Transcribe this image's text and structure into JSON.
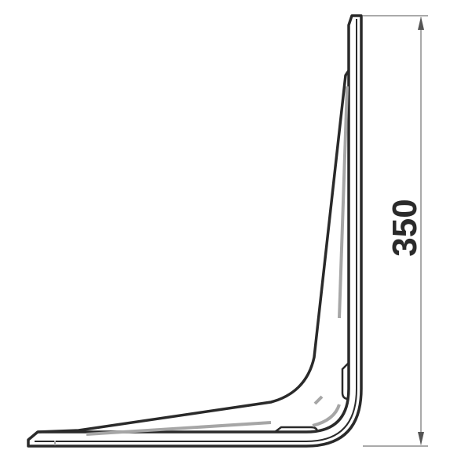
{
  "drawing": {
    "dimension": {
      "value": "350"
    },
    "colors": {
      "outline": "#2a2a2a",
      "inner_line": "#a6a6a6",
      "dimension_line": "#555555",
      "background": "#ffffff"
    }
  }
}
